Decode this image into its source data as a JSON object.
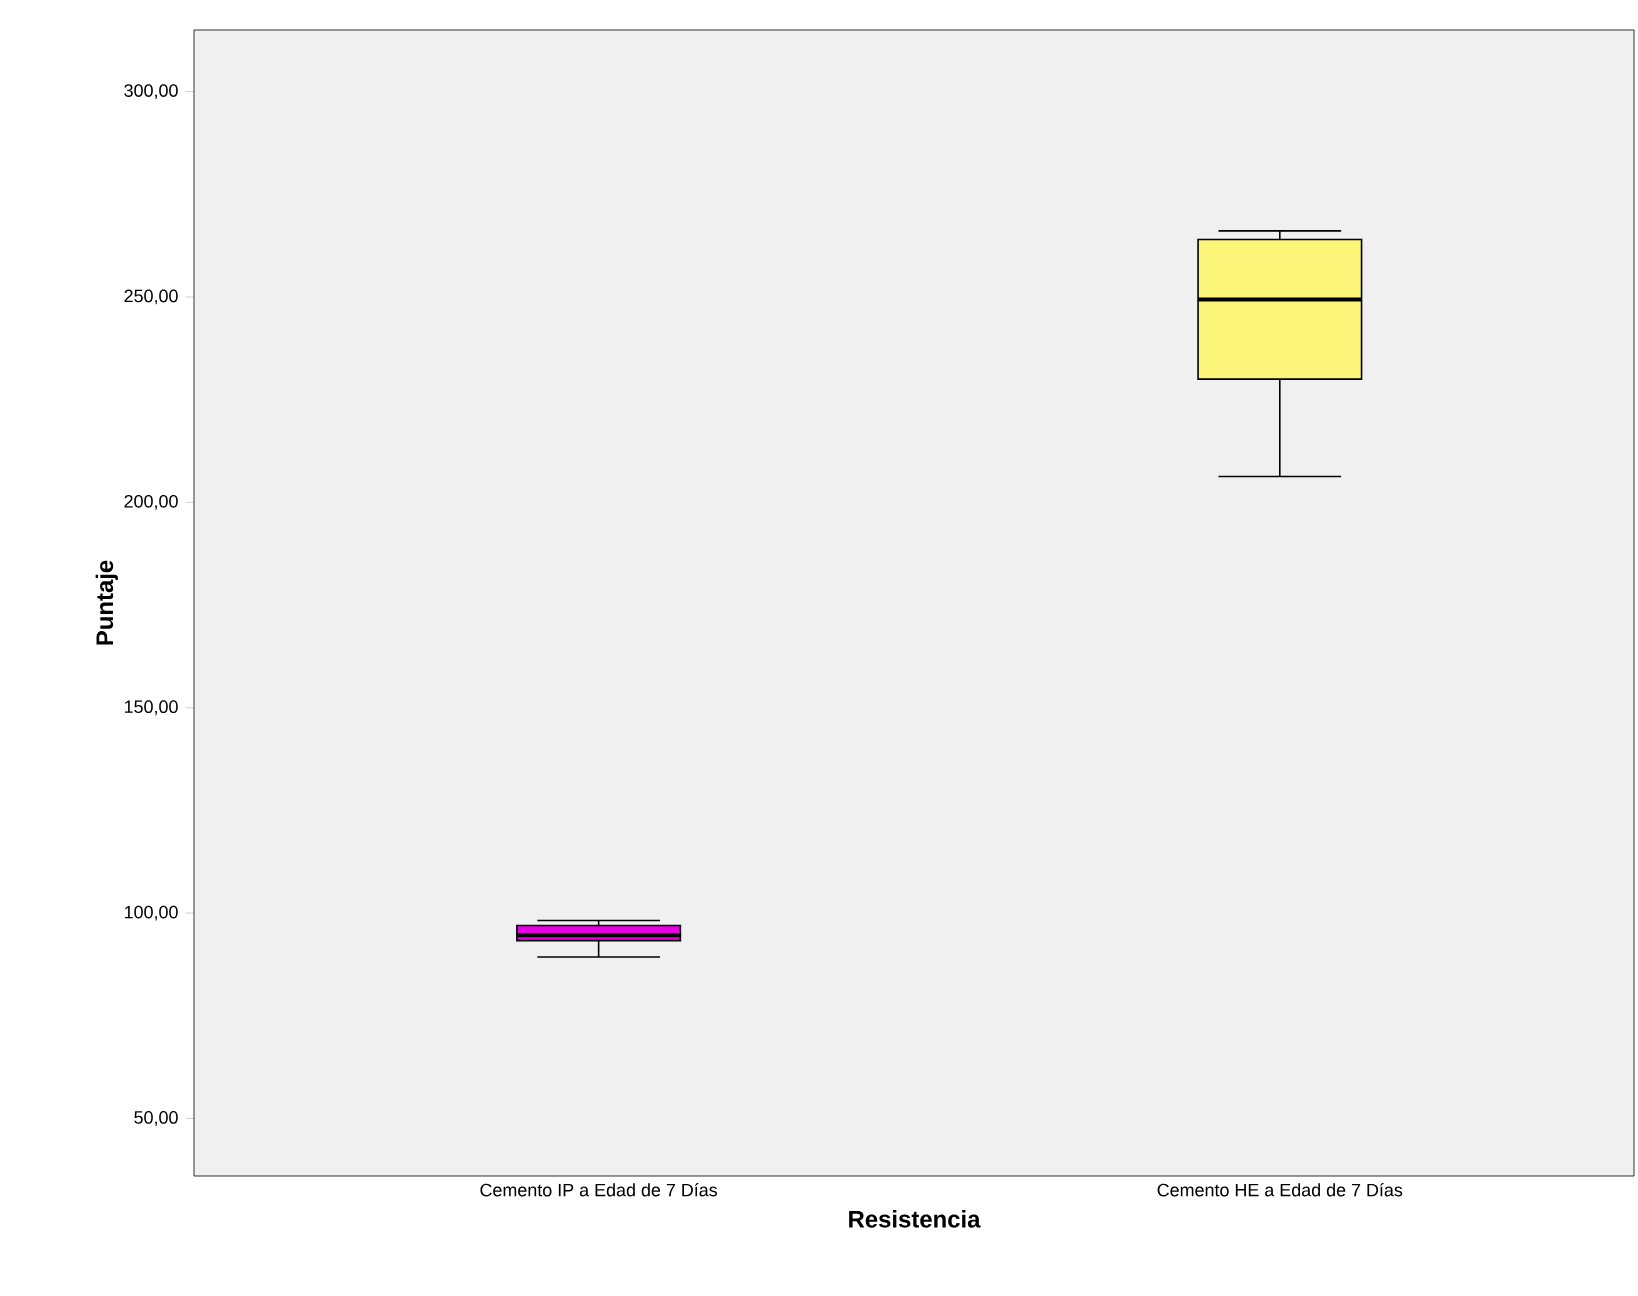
{
  "chart_data": {
    "type": "box",
    "xlabel": "Resistencia",
    "ylabel": "Puntaje",
    "categories": [
      "Cemento IP a Edad de 7 Días",
      "Cemento HE a Edad de 7 Días"
    ],
    "boxes": [
      {
        "low": 89.3,
        "q1": 93.3,
        "median": 94.6,
        "q3": 97.0,
        "high": 98.2
      },
      {
        "low": 206.3,
        "q1": 230.0,
        "median": 249.4,
        "q3": 264.0,
        "high": 266.1
      }
    ],
    "colors": [
      "#e600e6",
      "#fbf67a"
    ],
    "ylim": [
      36,
      315
    ],
    "yticks": [
      {
        "value": 50,
        "label": "50,00"
      },
      {
        "value": 100,
        "label": "100,00"
      },
      {
        "value": 150,
        "label": "150,00"
      },
      {
        "value": 200,
        "label": "200,00"
      },
      {
        "value": 250,
        "label": "250,00"
      },
      {
        "value": 300,
        "label": "300,00"
      }
    ]
  }
}
